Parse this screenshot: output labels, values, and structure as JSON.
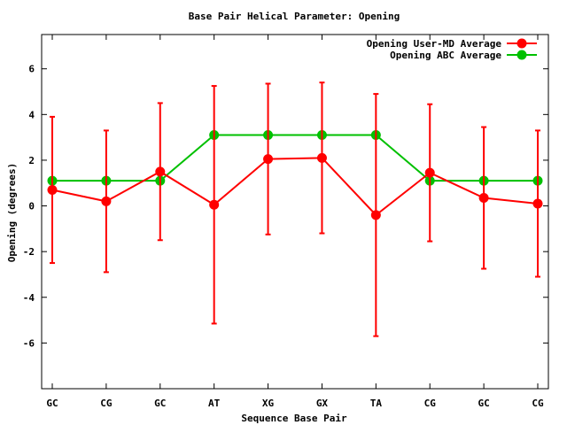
{
  "chart_data": {
    "type": "line",
    "title": "Base Pair Helical Parameter: Opening",
    "xlabel": "Sequence Base Pair",
    "ylabel": "Opening (degrees)",
    "categories": [
      "GC",
      "CG",
      "GC",
      "AT",
      "XG",
      "GX",
      "TA",
      "CG",
      "GC",
      "CG"
    ],
    "ylim": [
      -8,
      7.5
    ],
    "yticks": [
      -6,
      -4,
      -2,
      0,
      2,
      4,
      6
    ],
    "grid": false,
    "legend_position": "top-right",
    "series": [
      {
        "name": "Opening User-MD Average",
        "color": "#ff0000",
        "values": [
          0.7,
          0.2,
          1.5,
          0.05,
          2.05,
          2.1,
          -0.4,
          1.45,
          0.35,
          0.1
        ],
        "errors": [
          3.2,
          3.1,
          3.0,
          5.2,
          3.3,
          3.3,
          5.3,
          3.0,
          3.1,
          3.2
        ]
      },
      {
        "name": "Opening ABC Average",
        "color": "#00c000",
        "values": [
          1.1,
          1.1,
          1.1,
          3.1,
          3.1,
          3.1,
          3.1,
          1.1,
          1.1,
          1.1
        ]
      }
    ]
  }
}
